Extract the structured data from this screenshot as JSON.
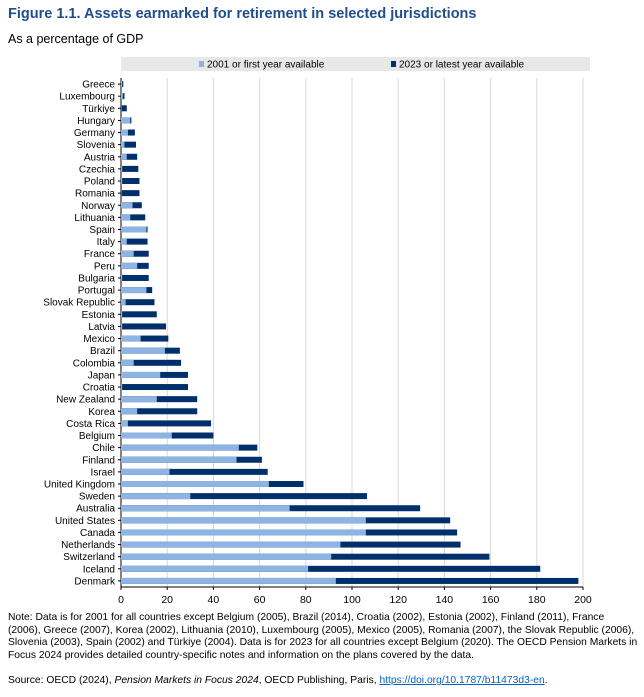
{
  "figure": {
    "title": "Figure 1.1. Assets earmarked for retirement in selected jurisdictions",
    "subtitle": "As a percentage of GDP"
  },
  "colors": {
    "series_2001": "#8db4e2",
    "series_2023": "#002f6c",
    "legend_band": "#e8e8e8",
    "grid": "#d9d9d9",
    "title": "#1f4e8c"
  },
  "chart_data": {
    "type": "bar",
    "orientation": "horizontal",
    "overlay": true,
    "xlim": [
      0,
      200
    ],
    "xticks": [
      0,
      20,
      40,
      60,
      80,
      100,
      120,
      140,
      160,
      180,
      200
    ],
    "grid": true,
    "legend_position": "top",
    "categories": [
      "Greece",
      "Luxembourg",
      "Türkiye",
      "Hungary",
      "Germany",
      "Slovenia",
      "Austria",
      "Czechia",
      "Poland",
      "Romania",
      "Norway",
      "Lithuania",
      "Spain",
      "Italy",
      "France",
      "Peru",
      "Bulgaria",
      "Portugal",
      "Slovak Republic",
      "Estonia",
      "Latvia",
      "Mexico",
      "Brazil",
      "Colombia",
      "Japan",
      "Croatia",
      "New Zealand",
      "Korea",
      "Costa Rica",
      "Belgium",
      "Chile",
      "Finland",
      "Israel",
      "United Kingdom",
      "Sweden",
      "Australia",
      "United States",
      "Canada",
      "Netherlands",
      "Switzerland",
      "Iceland",
      "Denmark"
    ],
    "series": [
      {
        "name": "2001 or first year available",
        "values": [
          0.5,
          0.8,
          0.2,
          4,
          3,
          1.5,
          2.5,
          0.5,
          0.5,
          0.2,
          5,
          4,
          11,
          2.5,
          5.5,
          7,
          0.5,
          11,
          2,
          0.5,
          0.5,
          8.5,
          19,
          5.5,
          17,
          0.5,
          15.5,
          7,
          3,
          22,
          51,
          50,
          21,
          64,
          30,
          73,
          106,
          106,
          95,
          91,
          81,
          93
        ]
      },
      {
        "name": "2023 or latest year available",
        "values": [
          1,
          1.5,
          2.5,
          4.5,
          6,
          6.5,
          7,
          7.5,
          8,
          8,
          9,
          10.5,
          11.5,
          11.5,
          12,
          12,
          12,
          13.5,
          14.5,
          15.5,
          19.5,
          20.5,
          25.5,
          26,
          29,
          29,
          33,
          33,
          39,
          40,
          59,
          61,
          63.5,
          79,
          106.5,
          129.5,
          142.5,
          145.5,
          147,
          159.5,
          181.5,
          198
        ]
      }
    ]
  },
  "notes": {
    "note": "Note: Data is for 2001 for all countries except Belgium (2005), Brazil (2014), Croatia (2002), Estonia (2002), Finland (2011), France (2006), Greece (2007), Korea (2002), Lithuania (2010), Luxembourg (2005), Mexico (2005), Romania (2007), the Slovak Republic (2006), Slovenia (2003), Spain (2002) and Türkiye (2004). Data is for 2023 for all countries except Belgium (2020). The OECD Pension Markets in Focus 2024 provides detailed country-specific notes and information on the plans covered by the data.",
    "source_prefix": "Source: OECD (2024), ",
    "source_title": "Pension Markets in Focus 2024",
    "source_suffix": ", OECD Publishing, Paris, ",
    "source_link": "https://doi.org/10.1787/b11473d3-en",
    "source_end": "."
  }
}
